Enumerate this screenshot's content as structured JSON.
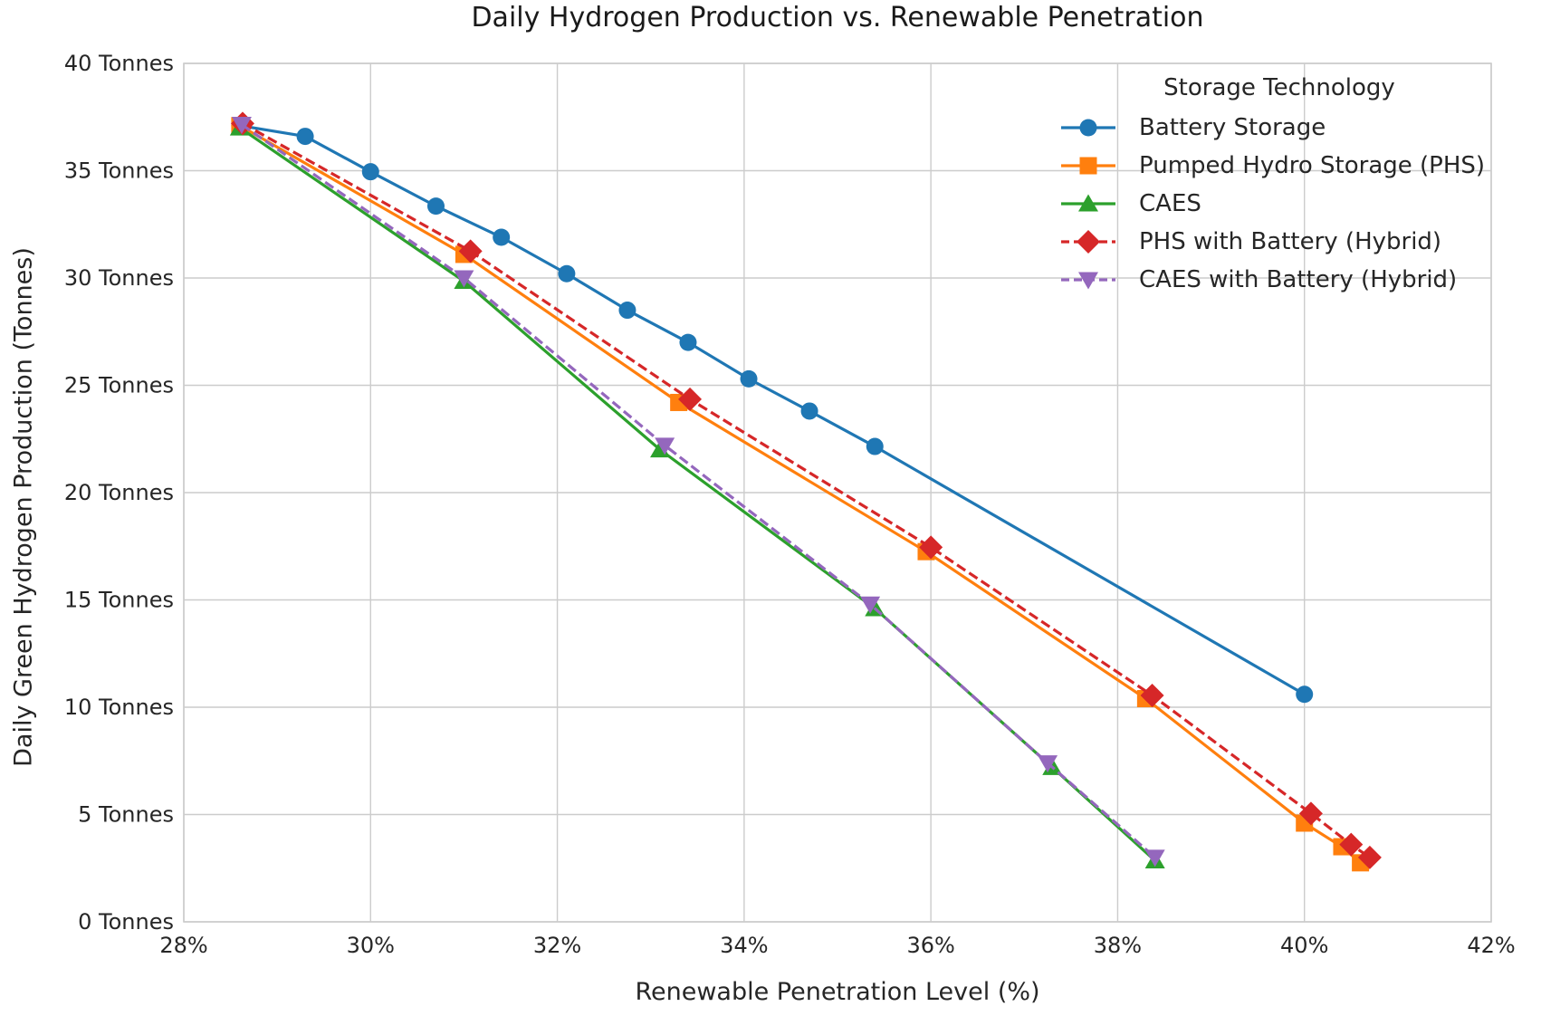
{
  "colors": {
    "background": "#ffffff",
    "grid": "#cccccc",
    "spine": "#cccccc",
    "text": "#262626"
  },
  "chart_data": {
    "type": "line",
    "title": "Daily Hydrogen Production vs. Renewable Penetration",
    "xlabel": "Renewable Penetration Level (%)",
    "ylabel": "Daily Green Hydrogen Production (Tonnes)",
    "xlim": [
      28,
      42
    ],
    "ylim": [
      0,
      40
    ],
    "xticks": [
      28,
      30,
      32,
      34,
      36,
      38,
      40,
      42
    ],
    "xtick_labels": [
      "28%",
      "30%",
      "32%",
      "34%",
      "36%",
      "38%",
      "40%",
      "42%"
    ],
    "yticks": [
      0,
      5,
      10,
      15,
      20,
      25,
      30,
      35,
      40
    ],
    "ytick_labels": [
      "0 Tonnes",
      "5 Tonnes",
      "10 Tonnes",
      "15 Tonnes",
      "20 Tonnes",
      "25 Tonnes",
      "30 Tonnes",
      "35 Tonnes",
      "40 Tonnes"
    ],
    "grid": true,
    "legend": {
      "title": "Storage Technology",
      "position": "upper right",
      "frame": false
    },
    "series": [
      {
        "name": "Battery Storage",
        "color": "#1f77b4",
        "marker": "circle",
        "line_style": "solid",
        "x": [
          28.6,
          29.3,
          30.0,
          30.7,
          31.4,
          32.1,
          32.75,
          33.4,
          34.05,
          34.7,
          35.4,
          40.0
        ],
        "y": [
          37.1,
          36.6,
          34.95,
          33.35,
          31.9,
          30.2,
          28.5,
          27.0,
          25.3,
          23.8,
          22.15,
          10.6
        ]
      },
      {
        "name": "Pumped Hydro Storage (PHS)",
        "color": "#ff7f0e",
        "marker": "square",
        "line_style": "solid",
        "x": [
          28.6,
          31.0,
          33.3,
          35.95,
          38.3,
          40.0,
          40.4,
          40.6
        ],
        "y": [
          37.1,
          31.1,
          24.2,
          17.25,
          10.4,
          4.6,
          3.5,
          2.75
        ]
      },
      {
        "name": "CAES",
        "color": "#2ca02c",
        "marker": "triangle-up",
        "line_style": "solid",
        "x": [
          28.6,
          31.0,
          33.1,
          35.4,
          37.3,
          38.4
        ],
        "y": [
          37.0,
          29.85,
          22.0,
          14.6,
          7.2,
          2.85
        ]
      },
      {
        "name": "PHS with Battery (Hybrid)",
        "color": "#d62728",
        "marker": "diamond",
        "line_style": "dashed",
        "x": [
          28.63,
          31.07,
          33.42,
          36.0,
          38.37,
          40.07,
          40.5,
          40.7
        ],
        "y": [
          37.2,
          31.25,
          24.35,
          17.45,
          10.55,
          5.05,
          3.6,
          3.0
        ]
      },
      {
        "name": "CAES with Battery (Hybrid)",
        "color": "#9467bd",
        "marker": "triangle-down",
        "line_style": "dashed",
        "x": [
          28.62,
          31.0,
          33.15,
          35.35,
          37.25,
          38.4
        ],
        "y": [
          37.15,
          30.0,
          22.2,
          14.8,
          7.4,
          3.0
        ]
      }
    ]
  }
}
